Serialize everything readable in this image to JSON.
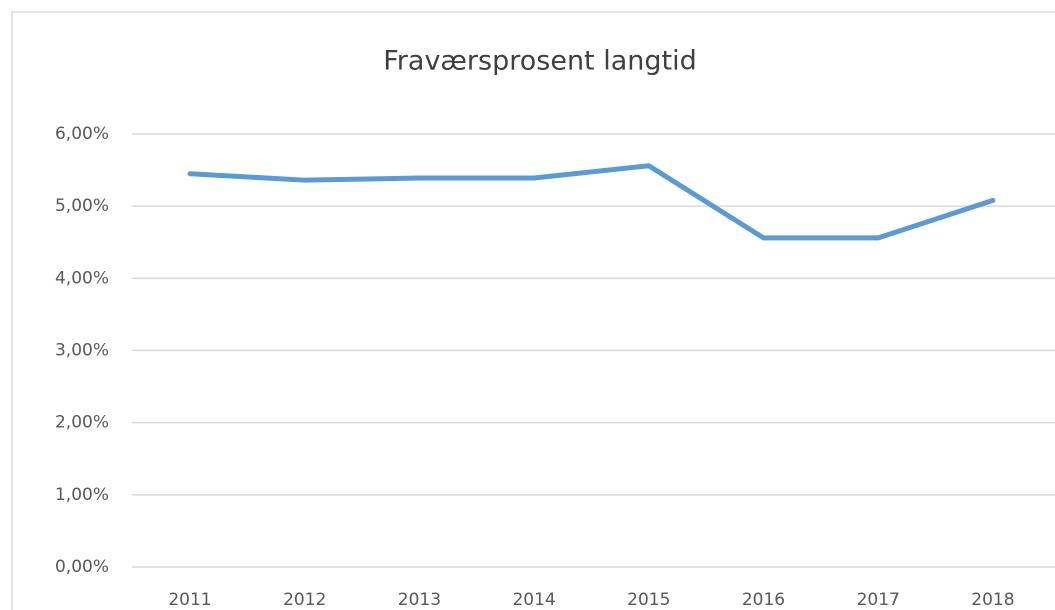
{
  "chart_data": {
    "type": "line",
    "title": "Fraværsprosent langtid",
    "categories": [
      "2011",
      "2012",
      "2013",
      "2014",
      "2015",
      "2016",
      "2017",
      "2018"
    ],
    "series": [
      {
        "name": "Fraværsprosent langtid",
        "color": "#5b9bd5",
        "values": [
          5.45,
          5.36,
          5.39,
          5.39,
          5.56,
          4.56,
          4.56,
          5.08
        ]
      }
    ],
    "ylim": [
      0,
      6
    ],
    "yticks": [
      {
        "value": 0,
        "label": "0,00%"
      },
      {
        "value": 1,
        "label": "1,00%"
      },
      {
        "value": 2,
        "label": "2,00%"
      },
      {
        "value": 3,
        "label": "3,00%"
      },
      {
        "value": 4,
        "label": "4,00%"
      },
      {
        "value": 5,
        "label": "5,00%"
      },
      {
        "value": 6,
        "label": "6,00%"
      }
    ],
    "grid": true
  }
}
